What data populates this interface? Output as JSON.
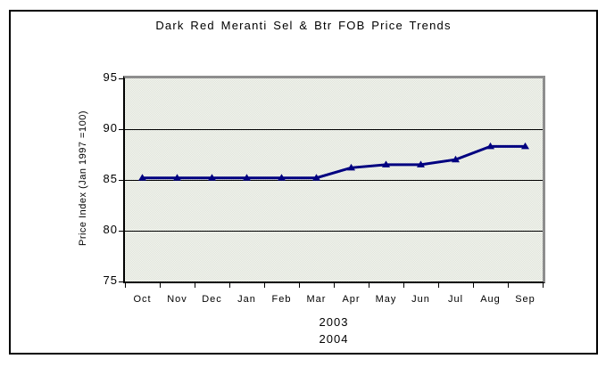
{
  "window": {
    "background": "#ffffff",
    "frame_border_color": "#000000"
  },
  "chart_data": {
    "type": "line",
    "title": "Dark Red Meranti Sel & Btr FOB Price Trends",
    "ylabel": "Price Index (Jan 1997 =100)",
    "xlabel": "",
    "categories": [
      "Oct",
      "Nov",
      "Dec",
      "Jan",
      "Feb",
      "Mar",
      "Apr",
      "May",
      "Jun",
      "Jul",
      "Aug",
      "Sep"
    ],
    "values": [
      85.2,
      85.2,
      85.2,
      85.2,
      85.2,
      85.2,
      86.2,
      86.5,
      86.5,
      87.0,
      88.3,
      88.3
    ],
    "x_note_lines": [
      "2003",
      "2004"
    ],
    "ylim": [
      75,
      95
    ],
    "yticks": [
      75,
      80,
      85,
      90,
      95
    ],
    "grid": "horizontal",
    "legend": "none",
    "line_color": "#000080",
    "marker": "triangle-up",
    "plot_bg": "#e9ebe5",
    "plot_border_shadow": "#8e8e8e"
  }
}
